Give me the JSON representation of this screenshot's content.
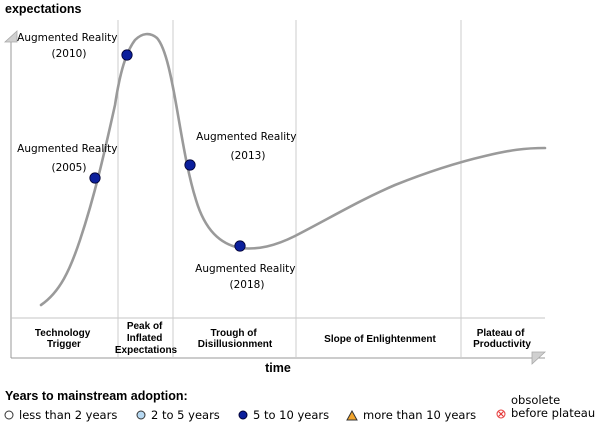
{
  "axes": {
    "y_label": "expectations",
    "x_label": "time"
  },
  "phases": [
    {
      "lines": [
        "Technology",
        "Trigger"
      ]
    },
    {
      "lines": [
        "Peak of",
        "Inflated",
        "Expectations"
      ]
    },
    {
      "lines": [
        "Trough of",
        "Disillusionment"
      ]
    },
    {
      "lines": [
        "Slope of Enlightenment"
      ]
    },
    {
      "lines": [
        "Plateau of",
        "Productivity"
      ]
    }
  ],
  "points": [
    {
      "name": "Augmented Reality",
      "year": "(2005)",
      "category": "5 to 10 years"
    },
    {
      "name": "Augmented Reality",
      "year": "(2010)",
      "category": "5 to 10 years"
    },
    {
      "name": "Augmented Reality",
      "year": "(2013)",
      "category": "5 to 10 years"
    },
    {
      "name": "Augmented Reality",
      "year": "(2018)",
      "category": "5 to 10 years"
    }
  ],
  "legend": {
    "title": "Years to mainstream adoption:",
    "items": [
      {
        "label": "less than 2 years",
        "icon": "open-circle-icon",
        "color": "#ffffff"
      },
      {
        "label": "2 to 5 years",
        "icon": "light-blue-circle-icon",
        "color": "#b7d9f2"
      },
      {
        "label": "5 to 10 years",
        "icon": "dark-blue-circle-icon",
        "color": "#0b1f9c"
      },
      {
        "label": "more than 10 years",
        "icon": "orange-triangle-icon",
        "color": "#f2a52e"
      },
      {
        "label_line1": "obsolete",
        "label_line2": "before plateau",
        "icon": "crossed-circle-icon",
        "color": "#e63939"
      }
    ]
  },
  "colors": {
    "curve": "#9a9a9a",
    "axis": "#999999",
    "divider": "#cccccc",
    "marker": "#0b1f9c",
    "marker_stroke": "#000033"
  }
}
